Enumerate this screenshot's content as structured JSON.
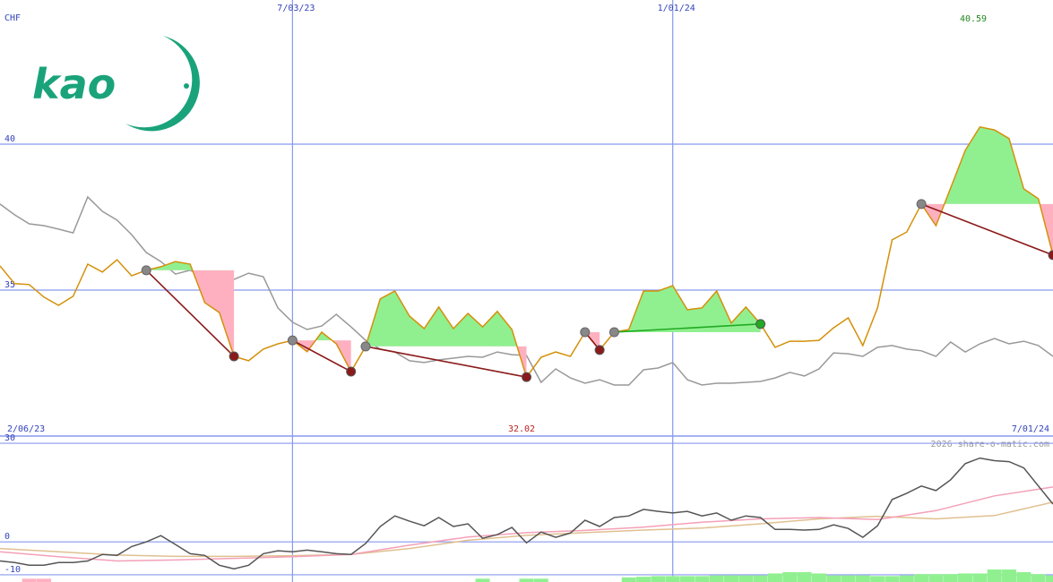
{
  "logo_text": "kao",
  "chart_data": [
    {
      "type": "line",
      "y_label": "CHF",
      "start_label": "2/06/23",
      "end_label": "7/01/24",
      "max_label": "40.59",
      "min_label": "32.02",
      "xlim": [
        -20,
        52
      ],
      "xticks": [
        {
          "value": 0,
          "label": "7/03/23"
        },
        {
          "value": 26,
          "label": "1/01/24"
        }
      ],
      "ylim": [
        30,
        44.94
      ],
      "yticks": [
        35,
        40
      ],
      "grid": true,
      "x": [
        -20,
        -19,
        -18,
        -17,
        -16,
        -15,
        -14,
        -13,
        -12,
        -11,
        -10,
        -9,
        -8,
        -7,
        -6,
        -5,
        -4,
        -3,
        -2,
        -1,
        0,
        1,
        2,
        3,
        4,
        5,
        6,
        7,
        8,
        9,
        10,
        11,
        12,
        13,
        14,
        15,
        16,
        17,
        18,
        19,
        20,
        21,
        22,
        23,
        24,
        25,
        26,
        27,
        28,
        29,
        30,
        31,
        32,
        33,
        34,
        35,
        36,
        37,
        38,
        39,
        40,
        41,
        42,
        43,
        44,
        45,
        46,
        47,
        48,
        49,
        50,
        51,
        52
      ],
      "series": [
        {
          "color": "#999999",
          "values": [
            37.95,
            37.58,
            37.27,
            37.21,
            37.09,
            36.96,
            38.19,
            37.7,
            37.4,
            36.9,
            36.29,
            35.98,
            35.55,
            35.68,
            35.43,
            35.12,
            35.37,
            35.58,
            35.46,
            34.39,
            33.9,
            33.65,
            33.77,
            34.17,
            33.74,
            33.28,
            32.98,
            32.88,
            32.58,
            32.52,
            32.61,
            32.67,
            32.73,
            32.7,
            32.88,
            32.79,
            32.76,
            31.84,
            32.3,
            31.99,
            31.81,
            31.93,
            31.75,
            31.75,
            32.27,
            32.33,
            32.52,
            31.93,
            31.75,
            31.81,
            31.81,
            31.84,
            31.87,
            31.99,
            32.18,
            32.06,
            32.3,
            32.85,
            32.82,
            32.73,
            33.04,
            33.1,
            32.98,
            32.92,
            32.73,
            33.22,
            32.88,
            33.16,
            33.34,
            33.16,
            33.25,
            33.1,
            32.73
          ]
        },
        {
          "color": "#d4900a",
          "values": [
            35.83,
            35.22,
            35.19,
            34.76,
            34.48,
            34.79,
            35.89,
            35.62,
            36.04,
            35.49,
            35.68,
            35.8,
            35.98,
            35.89,
            34.57,
            34.23,
            32.73,
            32.58,
            32.98,
            33.16,
            33.28,
            32.89,
            33.56,
            33.16,
            32.21,
            33.07,
            34.7,
            34.97,
            34.11,
            33.68,
            34.42,
            33.68,
            34.2,
            33.74,
            34.27,
            33.65,
            32.02,
            32.7,
            32.88,
            32.73,
            33.56,
            32.95,
            33.56,
            33.65,
            34.97,
            34.97,
            35.15,
            34.33,
            34.39,
            34.97,
            33.87,
            34.42,
            33.84,
            33.04,
            33.25,
            33.25,
            33.28,
            33.71,
            34.05,
            33.1,
            34.39,
            36.72,
            36.99,
            37.95,
            37.21,
            38.5,
            39.79,
            40.59,
            40.49,
            40.19,
            38.47,
            38.13,
            36.2
          ]
        }
      ],
      "signals": [
        {
          "from": -10,
          "to": -4,
          "color": "#8b1a1a"
        },
        {
          "from": 0,
          "to": 4,
          "color": "#8b1a1a"
        },
        {
          "from": 5,
          "to": 16,
          "color": "#8b1a1a"
        },
        {
          "from": 20,
          "to": 21,
          "color": "#8b1a1a"
        },
        {
          "from": 22,
          "to": 32,
          "color": "#22aa22"
        },
        {
          "from": 43,
          "to": 52,
          "color": "#8b1a1a"
        }
      ]
    },
    {
      "type": "line",
      "credit": "2026 share-o-matic.com",
      "xlim": [
        -20,
        52
      ],
      "ylim": [
        -12.2,
        32.2
      ],
      "yticks": [
        -10,
        0,
        30
      ],
      "grid": true,
      "series": [
        {
          "color": "#ffb0c0",
          "type": "bar",
          "x": [
            -18,
            -17
          ],
          "values": [
            -11.2,
            -11.2
          ]
        },
        {
          "color": "#90f090",
          "type": "bar",
          "x": [
            13,
            16,
            17,
            23,
            24,
            25,
            26,
            27,
            28,
            29,
            30,
            31,
            32,
            33,
            34,
            35,
            36,
            37,
            38,
            39,
            40,
            41,
            42,
            43,
            44,
            45,
            46,
            47,
            48,
            49,
            50,
            51,
            52
          ],
          "values": [
            -11.2,
            -11.2,
            -11.2,
            -10.8,
            -10.6,
            -10.4,
            -10.4,
            -10.4,
            -10.4,
            -10.2,
            -10.2,
            -10.2,
            -10.2,
            -9.6,
            -9.2,
            -9.2,
            -9.6,
            -10.2,
            -10.2,
            -10.2,
            -10.4,
            -10.4,
            -10.2,
            -9.8,
            -9.8,
            -9.8,
            -9.6,
            -9.6,
            -8.4,
            -8.4,
            -9.2,
            -9.8,
            -10.2
          ]
        },
        {
          "color": "#e0c090",
          "x": [
            -20,
            -16,
            -12,
            -8,
            -4,
            0,
            4,
            8,
            12,
            16,
            20,
            24,
            28,
            32,
            36,
            40,
            44,
            48,
            52
          ],
          "values": [
            -2,
            -3,
            -4,
            -4.4,
            -4.4,
            -4.2,
            -3.8,
            -2,
            0.5,
            2,
            2.8,
            3.6,
            4.2,
            5.5,
            7,
            7.8,
            7,
            8,
            12.1
          ]
        },
        {
          "color": "#f4a0b8",
          "x": [
            -20,
            -16,
            -12,
            -8,
            -4,
            0,
            4,
            8,
            12,
            16,
            20,
            24,
            28,
            32,
            36,
            40,
            44,
            48,
            52
          ],
          "values": [
            -3,
            -4.5,
            -5.8,
            -5.5,
            -5,
            -4.5,
            -3.8,
            -1,
            1.5,
            2.8,
            3.5,
            4.5,
            6,
            7,
            7.4,
            6.8,
            9.5,
            14,
            16.7
          ]
        },
        {
          "color": "#555555",
          "values": [
            -5.8,
            -6.3,
            -7.1,
            -7.1,
            -6.3,
            -6.3,
            -5.8,
            -3.8,
            -4.1,
            -1.4,
            0,
            1.9,
            -0.8,
            -3.6,
            -4.1,
            -7.1,
            -8.2,
            -7.1,
            -3.6,
            -2.7,
            -3.0,
            -2.5,
            -3.0,
            -3.6,
            -3.8,
            -0.5,
            4.7,
            7.9,
            6.3,
            4.9,
            7.4,
            4.7,
            5.5,
            1.1,
            2.2,
            4.4,
            -0.3,
            3.0,
            1.4,
            2.7,
            6.6,
            4.7,
            7.4,
            7.9,
            9.9,
            9.3,
            8.8,
            9.3,
            7.9,
            8.8,
            6.6,
            7.9,
            7.4,
            3.8,
            3.8,
            3.6,
            3.8,
            5.2,
            4.1,
            1.4,
            4.9,
            12.9,
            14.8,
            17.0,
            15.6,
            18.9,
            23.8,
            25.5,
            24.7,
            24.4,
            22.5,
            17.0,
            11.5
          ]
        }
      ]
    }
  ]
}
